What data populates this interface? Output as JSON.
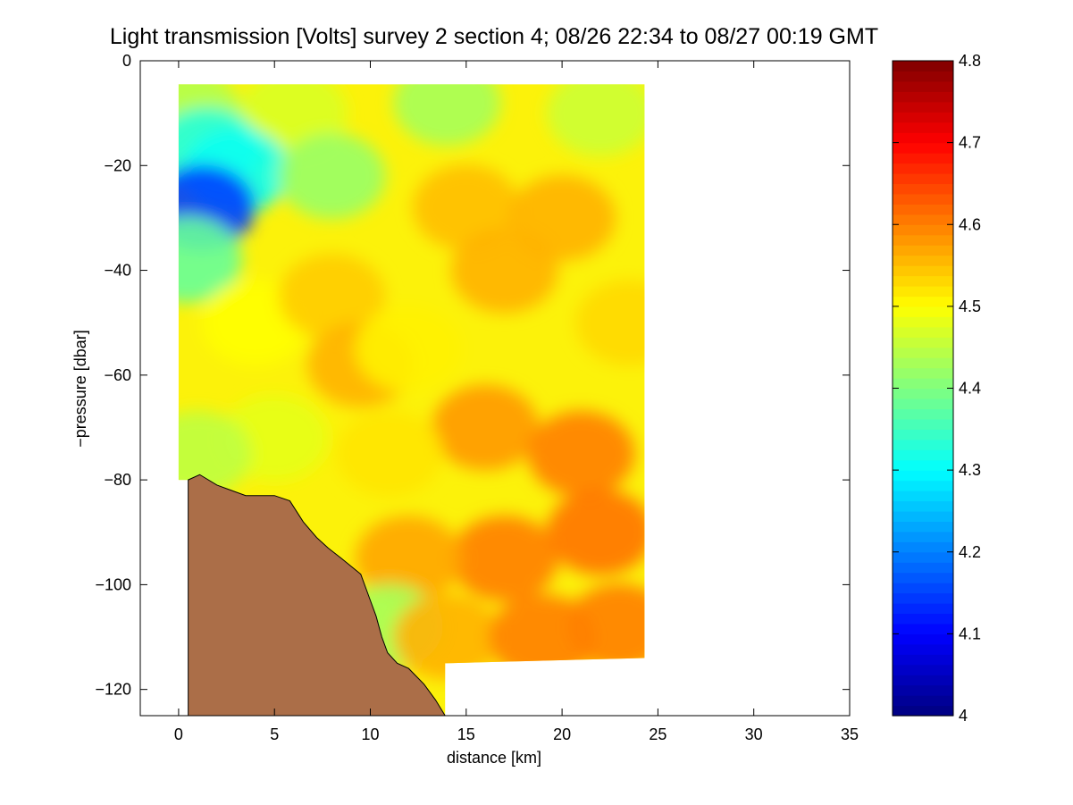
{
  "chart_data": {
    "type": "heatmap",
    "title": "Light transmission [Volts] survey 2 section 4; 08/26 22:34 to 08/27 00:19 GMT",
    "xlabel": "distance [km]",
    "ylabel": "−pressure [dbar]",
    "xlim": [
      -2,
      35
    ],
    "ylim": [
      -125,
      0
    ],
    "x_ticks": [
      0,
      5,
      10,
      15,
      20,
      25,
      30,
      35
    ],
    "x_tick_labels": [
      "0",
      "5",
      "10",
      "15",
      "20",
      "25",
      "30",
      "35"
    ],
    "y_ticks": [
      0,
      -20,
      -40,
      -60,
      -80,
      -100,
      -120
    ],
    "y_tick_labels": [
      "0",
      "−20",
      "−40",
      "−60",
      "−80",
      "−100",
      "−120"
    ],
    "colorbar": {
      "colormap": "jet",
      "range": [
        4.0,
        4.8
      ],
      "ticks": [
        4.0,
        4.1,
        4.2,
        4.3,
        4.4,
        4.5,
        4.6,
        4.7,
        4.8
      ],
      "tick_labels": [
        "4",
        "4.1",
        "4.2",
        "4.3",
        "4.4",
        "4.5",
        "4.6",
        "4.7",
        "4.8"
      ]
    },
    "data_extent": {
      "x_km": [
        0,
        24.3
      ],
      "top_dbar": -4.5,
      "bottom_dbar_min": -115
    },
    "field_samples": [
      {
        "x": 0.5,
        "y": -10,
        "v": 4.44
      },
      {
        "x": 6,
        "y": -10,
        "v": 4.47
      },
      {
        "x": 14,
        "y": -8,
        "v": 4.43
      },
      {
        "x": 22,
        "y": -10,
        "v": 4.46
      },
      {
        "x": 1.5,
        "y": -17,
        "v": 4.33
      },
      {
        "x": 3,
        "y": -21,
        "v": 4.31
      },
      {
        "x": 1.2,
        "y": -28,
        "v": 4.15
      },
      {
        "x": 0.5,
        "y": -38,
        "v": 4.38
      },
      {
        "x": 8,
        "y": -22,
        "v": 4.42
      },
      {
        "x": 4,
        "y": -50,
        "v": 4.5
      },
      {
        "x": 8,
        "y": -45,
        "v": 4.54
      },
      {
        "x": 9.5,
        "y": -58,
        "v": 4.56
      },
      {
        "x": 12,
        "y": -55,
        "v": 4.51
      },
      {
        "x": 15,
        "y": -28,
        "v": 4.55
      },
      {
        "x": 17,
        "y": -40,
        "v": 4.56
      },
      {
        "x": 20,
        "y": -30,
        "v": 4.56
      },
      {
        "x": 23.5,
        "y": -50,
        "v": 4.53
      },
      {
        "x": 16,
        "y": -70,
        "v": 4.58
      },
      {
        "x": 21,
        "y": -75,
        "v": 4.6
      },
      {
        "x": 22,
        "y": -90,
        "v": 4.61
      },
      {
        "x": 17,
        "y": -95,
        "v": 4.6
      },
      {
        "x": 12,
        "y": -95,
        "v": 4.57
      },
      {
        "x": 11,
        "y": -75,
        "v": 4.52
      },
      {
        "x": 5,
        "y": -72,
        "v": 4.48
      },
      {
        "x": 1,
        "y": -75,
        "v": 4.45
      },
      {
        "x": 11,
        "y": -108,
        "v": 4.43
      },
      {
        "x": 14,
        "y": -110,
        "v": 4.56
      },
      {
        "x": 19,
        "y": -110,
        "v": 4.6
      },
      {
        "x": 23,
        "y": -108,
        "v": 4.6
      }
    ],
    "bathymetry": [
      [
        0.5,
        -80
      ],
      [
        1.1,
        -79
      ],
      [
        2.0,
        -81
      ],
      [
        3.5,
        -83
      ],
      [
        5.0,
        -83
      ],
      [
        5.8,
        -84
      ],
      [
        6.5,
        -88
      ],
      [
        7.2,
        -91
      ],
      [
        7.8,
        -93
      ],
      [
        8.5,
        -95
      ],
      [
        9.5,
        -98
      ],
      [
        10.0,
        -103
      ],
      [
        10.3,
        -106
      ],
      [
        10.6,
        -110
      ],
      [
        10.9,
        -113
      ],
      [
        11.4,
        -115
      ],
      [
        12.0,
        -116
      ],
      [
        12.8,
        -119
      ],
      [
        13.4,
        -122
      ],
      [
        13.9,
        -125
      ]
    ],
    "seafloor_color": "#ab6e48"
  }
}
